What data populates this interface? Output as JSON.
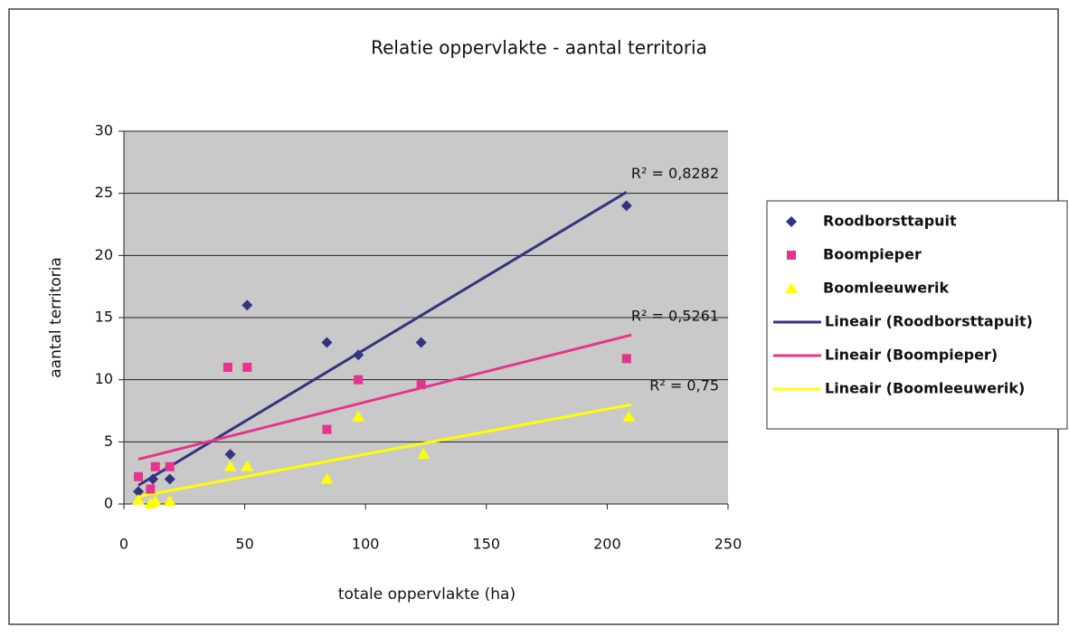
{
  "chart_data": {
    "type": "scatter",
    "title": "Relatie oppervlakte - aantal territoria",
    "xlabel": "totale oppervlakte (ha)",
    "ylabel": "aantal territoria",
    "xlim": [
      0,
      250
    ],
    "xticks": [
      0,
      50,
      100,
      150,
      200,
      250
    ],
    "ylim": [
      0,
      30
    ],
    "yticks": [
      0,
      5,
      10,
      15,
      20,
      25,
      30
    ],
    "grid": true,
    "legend": "right",
    "series": [
      {
        "name": "Roodborsttapuit",
        "color": "#333380",
        "marker": "diamond",
        "x": [
          6,
          12,
          19,
          44,
          51,
          84,
          97,
          123,
          208
        ],
        "values": [
          1,
          2,
          2,
          4,
          16,
          13,
          12,
          13,
          24
        ]
      },
      {
        "name": "Boompieper",
        "color": "#e6338c",
        "marker": "square",
        "x": [
          6,
          11,
          13,
          19,
          43,
          51,
          84,
          97,
          123,
          208
        ],
        "values": [
          2.2,
          1.2,
          3,
          3,
          11,
          11,
          6,
          10,
          9.6,
          11.7
        ]
      },
      {
        "name": "Boomleeuwerik",
        "color": "#ffff00",
        "marker": "triangle",
        "x": [
          6,
          11,
          13,
          19,
          44,
          51,
          84,
          97,
          124,
          209
        ],
        "values": [
          0.3,
          0,
          0.2,
          0.2,
          3,
          3,
          2,
          7,
          4,
          7
        ]
      }
    ],
    "trendlines": [
      {
        "name": "Lineair (Roodborsttapuit)",
        "color": "#333380",
        "x": [
          6,
          208
        ],
        "values": [
          1.5,
          25.1
        ],
        "r2_label": "R² = 0,8282"
      },
      {
        "name": "Lineair (Boompieper)",
        "color": "#e6338c",
        "x": [
          6,
          210
        ],
        "values": [
          3.6,
          13.6
        ],
        "r2_label": "R² = 0,5261"
      },
      {
        "name": "Lineair (Boomleeuwerik)",
        "color": "#ffff00",
        "x": [
          6,
          210
        ],
        "values": [
          0.6,
          8
        ],
        "r2_label": "R² = 0,75"
      }
    ]
  }
}
